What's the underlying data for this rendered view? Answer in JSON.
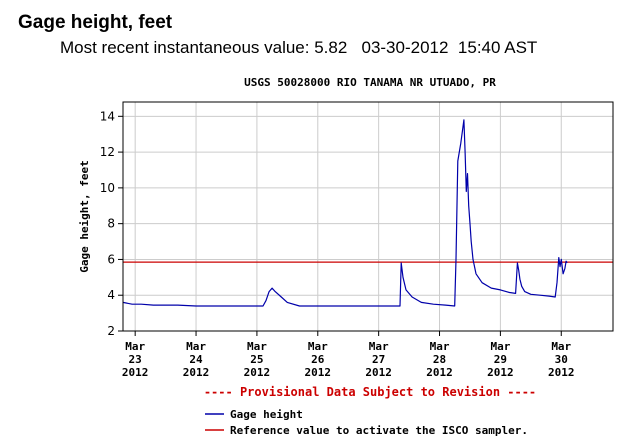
{
  "header": {
    "title": "Gage height, feet",
    "recent_label": "Most recent instantaneous value:",
    "recent_value": "5.82",
    "recent_date": "03-30-2012",
    "recent_time": "15:40 AST"
  },
  "chart_data": {
    "type": "line",
    "title": "USGS 50028000 RIO TANAMA NR UTUADO, PR",
    "ylabel": "Gage height, feet",
    "xlabel": "",
    "ylim": [
      2,
      14.8
    ],
    "xlim": [
      22.8,
      30.85
    ],
    "yticks": [
      2,
      4,
      6,
      8,
      10,
      12,
      14
    ],
    "xticks": [
      {
        "value": 23,
        "lines": [
          "Mar",
          "23",
          "2012"
        ]
      },
      {
        "value": 24,
        "lines": [
          "Mar",
          "24",
          "2012"
        ]
      },
      {
        "value": 25,
        "lines": [
          "Mar",
          "25",
          "2012"
        ]
      },
      {
        "value": 26,
        "lines": [
          "Mar",
          "26",
          "2012"
        ]
      },
      {
        "value": 27,
        "lines": [
          "Mar",
          "27",
          "2012"
        ]
      },
      {
        "value": 28,
        "lines": [
          "Mar",
          "28",
          "2012"
        ]
      },
      {
        "value": 29,
        "lines": [
          "Mar",
          "29",
          "2012"
        ]
      },
      {
        "value": 30,
        "lines": [
          "Mar",
          "30",
          "2012"
        ]
      }
    ],
    "grid": true,
    "note": "---- Provisional Data Subject to Revision ----",
    "series": [
      {
        "name": "Gage height",
        "color": "#0000aa",
        "x": [
          22.8,
          22.95,
          23.1,
          23.3,
          23.5,
          23.7,
          24.0,
          24.3,
          24.6,
          24.9,
          25.0,
          25.1,
          25.15,
          25.2,
          25.25,
          25.3,
          25.4,
          25.5,
          25.7,
          26.0,
          26.3,
          26.6,
          26.9,
          27.2,
          27.35,
          27.37,
          27.4,
          27.45,
          27.55,
          27.7,
          27.9,
          28.1,
          28.25,
          28.27,
          28.3,
          28.35,
          28.4,
          28.42,
          28.44,
          28.46,
          28.48,
          28.5,
          28.52,
          28.55,
          28.6,
          28.7,
          28.85,
          29.0,
          29.15,
          29.25,
          29.28,
          29.3,
          29.32,
          29.35,
          29.4,
          29.5,
          29.65,
          29.8,
          29.9,
          29.93,
          29.96,
          29.98,
          30.0,
          30.03,
          30.06,
          30.08,
          30.1
        ],
        "values": [
          3.6,
          3.5,
          3.5,
          3.45,
          3.45,
          3.45,
          3.4,
          3.4,
          3.4,
          3.4,
          3.4,
          3.4,
          3.7,
          4.2,
          4.4,
          4.2,
          3.9,
          3.6,
          3.4,
          3.4,
          3.4,
          3.4,
          3.4,
          3.4,
          3.4,
          5.8,
          5.0,
          4.3,
          3.9,
          3.6,
          3.5,
          3.45,
          3.4,
          6.0,
          11.5,
          12.5,
          13.8,
          12.0,
          9.8,
          10.8,
          9.0,
          8.0,
          7.0,
          6.0,
          5.2,
          4.7,
          4.4,
          4.3,
          4.15,
          4.1,
          5.8,
          5.4,
          4.9,
          4.5,
          4.2,
          4.05,
          4.0,
          3.95,
          3.9,
          4.7,
          6.1,
          5.6,
          6.0,
          5.2,
          5.5,
          5.9,
          5.82
        ]
      },
      {
        "name": "Reference value to activate the ISCO sampler.",
        "color": "#cc0000",
        "x": [
          22.8,
          30.85
        ],
        "values": [
          5.85,
          5.85
        ]
      }
    ]
  }
}
